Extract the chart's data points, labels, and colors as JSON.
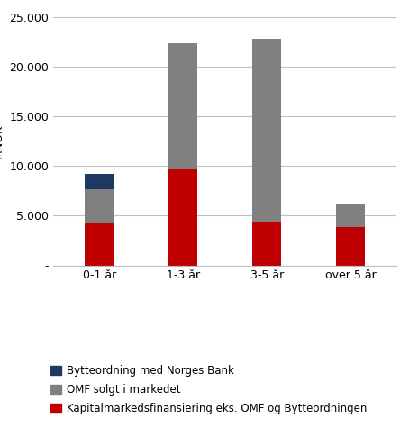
{
  "categories": [
    "0-1 år",
    "1-3 år",
    "3-5 år",
    "over 5 år"
  ],
  "series": {
    "Kapitalmarkedsfinansiering eks. OMF og Bytteordningen": [
      4300,
      9700,
      4400,
      3900
    ],
    "OMF solgt i markedet": [
      3400,
      12700,
      18400,
      2300
    ],
    "Bytteordning med Norges Bank": [
      1500,
      0,
      0,
      0
    ]
  },
  "colors": {
    "Kapitalmarkedsfinansiering eks. OMF og Bytteordningen": "#C00000",
    "OMF solgt i markedet": "#808080",
    "Bytteordning med Norges Bank": "#1F3864"
  },
  "ylim": [
    0,
    25000
  ],
  "yticks": [
    0,
    5000,
    10000,
    15000,
    20000,
    25000
  ],
  "ytick_labels": [
    "-",
    "5.000",
    "10.000",
    "15.000",
    "20.000",
    "25.000"
  ],
  "bar_width": 0.35,
  "legend_order": [
    "Bytteordning med Norges Bank",
    "OMF solgt i markedet",
    "Kapitalmarkedsfinansiering eks. OMF og Bytteordningen"
  ],
  "background_color": "#ffffff",
  "grid_color": "#c0c0c0",
  "tick_label_fontsize": 9,
  "legend_fontsize": 8.5,
  "ylabel_fontsize": 9
}
